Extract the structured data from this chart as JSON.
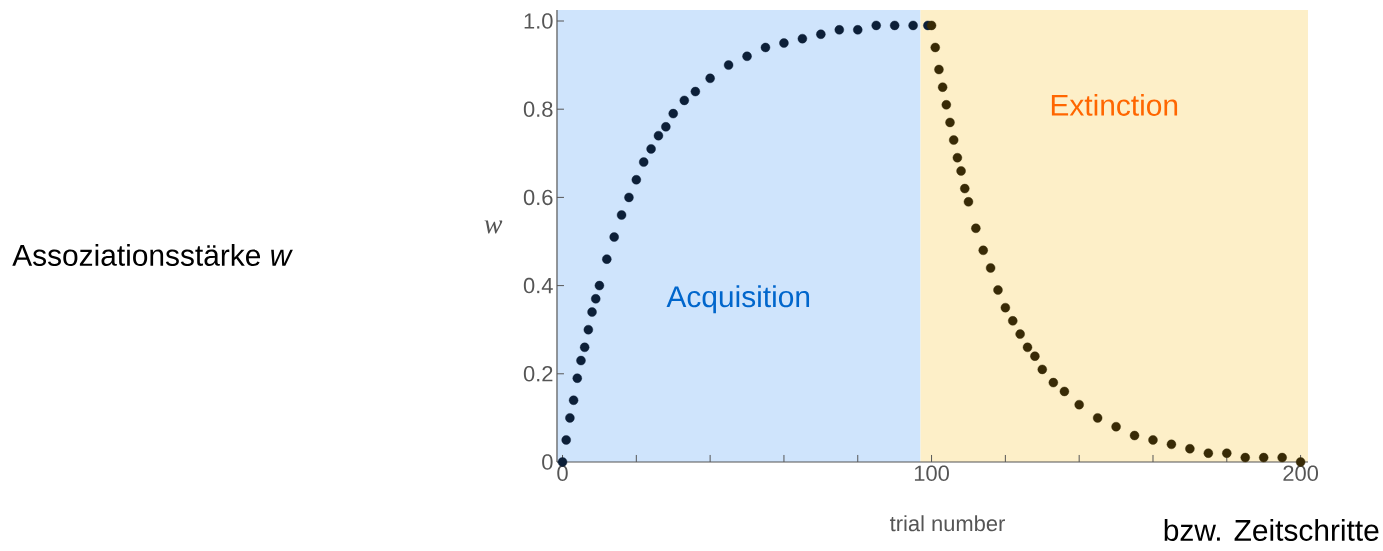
{
  "chart_data": {
    "type": "scatter",
    "xlabel": "trial number",
    "ylabel": "w",
    "marker": "circle",
    "grid": false,
    "xlim": [
      -1.5,
      202
    ],
    "ylim": [
      0,
      1.025
    ],
    "xticks": [
      0,
      {
        "value": 20,
        "label": null
      },
      {
        "value": 40,
        "label": null
      },
      {
        "value": 60,
        "label": null
      },
      {
        "value": 80,
        "label": null
      },
      100,
      {
        "value": 120,
        "label": null
      },
      {
        "value": 140,
        "label": null
      },
      {
        "value": 160,
        "label": null
      },
      {
        "value": 180,
        "label": null
      },
      200
    ],
    "yticks": [
      0,
      0.2,
      0.4,
      0.6,
      0.8,
      {
        "value": 1,
        "label": "1.0"
      }
    ],
    "bands": [
      {
        "axis": "x",
        "from": -1.5,
        "to": 97,
        "label": "Acquisition",
        "color": "#cfe4fc"
      },
      {
        "axis": "x",
        "from": 97,
        "to": 202,
        "label": "Extinction",
        "color": "#fdefc8"
      }
    ],
    "series": [
      {
        "color": "#0c1f38",
        "x": [
          0,
          1,
          2,
          3,
          4,
          5,
          6,
          7,
          8,
          9,
          10,
          12,
          14,
          16,
          18,
          20,
          22,
          24,
          26,
          28,
          30,
          33,
          36,
          40,
          45,
          50,
          55,
          60,
          65,
          70,
          75,
          80,
          85,
          90,
          95,
          99
        ],
        "values": [
          0,
          0.05,
          0.1,
          0.14,
          0.19,
          0.23,
          0.26,
          0.3,
          0.34,
          0.37,
          0.4,
          0.46,
          0.51,
          0.56,
          0.6,
          0.64,
          0.68,
          0.71,
          0.74,
          0.76,
          0.79,
          0.82,
          0.84,
          0.87,
          0.9,
          0.92,
          0.94,
          0.95,
          0.96,
          0.97,
          0.98,
          0.98,
          0.99,
          0.99,
          0.99,
          0.99
        ]
      },
      {
        "color": "#382a06",
        "x": [
          100,
          101,
          102,
          103,
          104,
          105,
          106,
          107,
          108,
          109,
          110,
          112,
          114,
          116,
          118,
          120,
          122,
          124,
          126,
          128,
          130,
          133,
          136,
          140,
          145,
          150,
          155,
          160,
          165,
          170,
          175,
          180,
          185,
          190,
          195,
          200
        ],
        "values": [
          0.99,
          0.94,
          0.89,
          0.85,
          0.81,
          0.77,
          0.73,
          0.69,
          0.66,
          0.62,
          0.59,
          0.53,
          0.48,
          0.44,
          0.39,
          0.35,
          0.32,
          0.29,
          0.26,
          0.24,
          0.21,
          0.18,
          0.16,
          0.13,
          0.1,
          0.08,
          0.06,
          0.05,
          0.04,
          0.03,
          0.02,
          0.02,
          0.01,
          0.01,
          0.01,
          0
        ]
      }
    ],
    "annotations": [
      "Assoziationsstärke *w*",
      "bzw. Zeitschritte"
    ]
  }
}
